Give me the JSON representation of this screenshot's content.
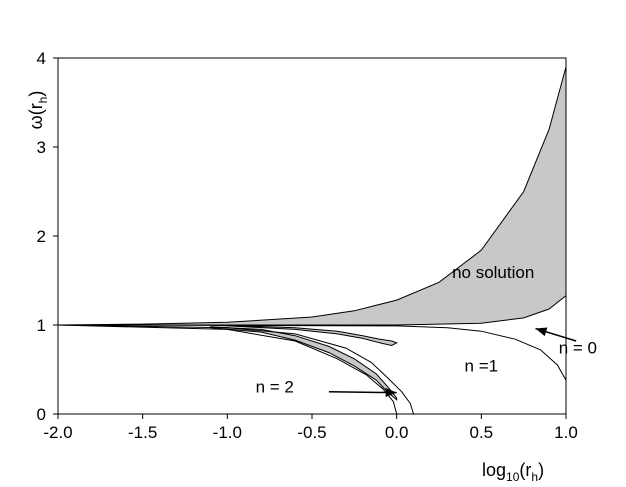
{
  "chart_data": {
    "type": "line",
    "title": "",
    "xlabel": {
      "base": "log",
      "sub": "10",
      "mid": "(r",
      "sub2": "h",
      "end": ")"
    },
    "ylabel": {
      "base": "ω(r",
      "sub": "h",
      "end": ")"
    },
    "xlim": [
      -2.0,
      1.0
    ],
    "ylim": [
      0,
      4
    ],
    "x_ticks": [
      "-2.0",
      "-1.5",
      "-1.0",
      "-0.5",
      "0.0",
      "0.5",
      "1.0"
    ],
    "x_tick_values": [
      -2.0,
      -1.5,
      -1.0,
      -0.5,
      0.0,
      0.5,
      1.0
    ],
    "y_ticks": [
      "0",
      "1",
      "2",
      "3",
      "4"
    ],
    "y_tick_values": [
      0,
      1,
      2,
      3,
      4
    ],
    "grid": false,
    "shaded_color": "#c8c8c8",
    "regions": [
      {
        "name": "no-solution-region",
        "upper": [
          [
            -2.0,
            1.0
          ],
          [
            -1.5,
            1.01
          ],
          [
            -1.0,
            1.03
          ],
          [
            -0.5,
            1.09
          ],
          [
            -0.25,
            1.16
          ],
          [
            0.0,
            1.28
          ],
          [
            0.25,
            1.48
          ],
          [
            0.5,
            1.84
          ],
          [
            0.75,
            2.5
          ],
          [
            0.9,
            3.2
          ],
          [
            1.0,
            3.9
          ]
        ],
        "lower": [
          [
            -2.0,
            1.0
          ],
          [
            -1.0,
            1.0
          ],
          [
            0.0,
            1.0
          ],
          [
            0.5,
            1.02
          ],
          [
            0.75,
            1.08
          ],
          [
            0.9,
            1.18
          ],
          [
            1.0,
            1.33
          ]
        ]
      },
      {
        "name": "n1-lobe-region",
        "upper": [
          [
            -1.1,
            1.0
          ],
          [
            -0.9,
            0.99
          ],
          [
            -0.6,
            0.97
          ],
          [
            -0.35,
            0.93
          ],
          [
            -0.2,
            0.88
          ],
          [
            -0.1,
            0.84
          ],
          [
            -0.03,
            0.82
          ],
          [
            0.0,
            0.8
          ]
        ],
        "lower": [
          [
            -1.1,
            1.0
          ],
          [
            -0.9,
            0.98
          ],
          [
            -0.6,
            0.95
          ],
          [
            -0.35,
            0.9
          ],
          [
            -0.2,
            0.85
          ],
          [
            -0.1,
            0.8
          ],
          [
            -0.03,
            0.77
          ],
          [
            0.0,
            0.8
          ]
        ]
      },
      {
        "name": "n2-lower-region",
        "upper": [
          [
            -1.1,
            0.98
          ],
          [
            -0.8,
            0.95
          ],
          [
            -0.6,
            0.88
          ],
          [
            -0.4,
            0.76
          ],
          [
            -0.25,
            0.62
          ],
          [
            -0.12,
            0.45
          ],
          [
            -0.05,
            0.3
          ],
          [
            0.0,
            0.18
          ]
        ],
        "lower": [
          [
            -1.1,
            0.97
          ],
          [
            -0.8,
            0.92
          ],
          [
            -0.6,
            0.83
          ],
          [
            -0.4,
            0.69
          ],
          [
            -0.25,
            0.54
          ],
          [
            -0.12,
            0.38
          ],
          [
            -0.05,
            0.24
          ],
          [
            0.0,
            0.16
          ]
        ]
      }
    ],
    "curves": [
      {
        "name": "n0-curve",
        "points": [
          [
            -2.0,
            1.0
          ],
          [
            -1.0,
            0.995
          ],
          [
            0.0,
            0.99
          ],
          [
            0.3,
            0.97
          ],
          [
            0.5,
            0.93
          ],
          [
            0.7,
            0.84
          ],
          [
            0.85,
            0.72
          ],
          [
            0.95,
            0.55
          ],
          [
            1.0,
            0.38
          ]
        ]
      },
      {
        "name": "n1-outer-curve",
        "points": [
          [
            -2.0,
            1.0
          ],
          [
            -1.0,
            0.97
          ],
          [
            -0.6,
            0.9
          ],
          [
            -0.3,
            0.74
          ],
          [
            -0.15,
            0.58
          ],
          [
            -0.05,
            0.4
          ],
          [
            0.03,
            0.25
          ],
          [
            0.08,
            0.12
          ],
          [
            0.1,
            0.0
          ]
        ]
      },
      {
        "name": "n2-curve",
        "points": [
          [
            -2.0,
            1.0
          ],
          [
            -1.0,
            0.95
          ],
          [
            -0.6,
            0.82
          ],
          [
            -0.35,
            0.62
          ],
          [
            -0.18,
            0.44
          ],
          [
            -0.08,
            0.28
          ],
          [
            -0.02,
            0.14
          ],
          [
            0.0,
            0.0
          ]
        ]
      }
    ],
    "annotations": [
      {
        "name": "label-no-solution",
        "text": "no solution",
        "x": 0.57,
        "y": 1.53
      },
      {
        "name": "label-n1",
        "text": "n =1",
        "x": 0.5,
        "y": 0.48
      },
      {
        "name": "label-n0",
        "text": "n = 0",
        "x": 1.07,
        "y": 0.68
      },
      {
        "name": "label-n2",
        "text": "n = 2",
        "x": -0.72,
        "y": 0.24
      }
    ],
    "arrows": [
      {
        "name": "arrow-n0",
        "from": [
          1.06,
          0.82
        ],
        "to": [
          0.82,
          0.96
        ]
      },
      {
        "name": "arrow-n2",
        "from": [
          -0.4,
          0.25
        ],
        "to": [
          0.0,
          0.24
        ]
      }
    ]
  }
}
